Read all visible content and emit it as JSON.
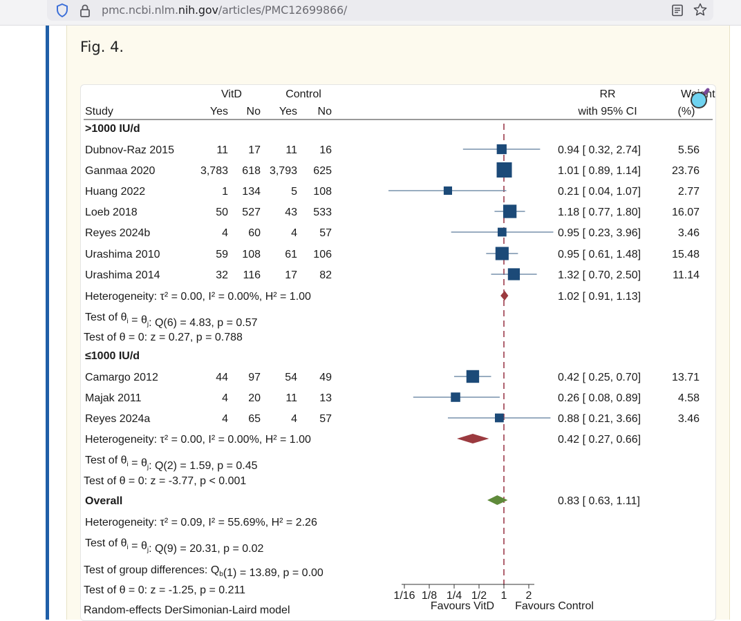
{
  "browser": {
    "url_prefix": "pmc.ncbi.nlm.",
    "url_domain": "nih.gov",
    "url_path": "/articles/PMC12699866/"
  },
  "figure": {
    "label": "Fig. 4."
  },
  "chart_data": {
    "type": "forest",
    "scale": "log2",
    "null_value": 1,
    "x_ticks": [
      0.0625,
      0.125,
      0.25,
      0.5,
      1,
      2
    ],
    "x_tick_labels": [
      "1/16",
      "1/8",
      "1/4",
      "1/2",
      "1",
      "2"
    ],
    "favours_left": "Favours VitD",
    "favours_right": "Favours Control",
    "headers": {
      "study": "Study",
      "vitd": "VitD",
      "control": "Control",
      "yes": "Yes",
      "no": "No",
      "rr": "RR",
      "ci": "with 95% CI",
      "weight": "Weight",
      "weight_unit": "(%)"
    },
    "groups": [
      {
        "name": ">1000 IU/d",
        "studies": [
          {
            "study": "Dubnov-Raz 2015",
            "vitd_yes": "11",
            "vitd_no": "17",
            "ctrl_yes": "11",
            "ctrl_no": "16",
            "rr": 0.94,
            "lo": 0.32,
            "hi": 2.74,
            "weight": "5.56",
            "rr_text": "0.94 [  0.32,  2.74]"
          },
          {
            "study": "Ganmaa 2020",
            "vitd_yes": "3,783",
            "vitd_no": "618",
            "ctrl_yes": "3,793",
            "ctrl_no": "625",
            "rr": 1.01,
            "lo": 0.89,
            "hi": 1.14,
            "weight": "23.76",
            "rr_text": "1.01 [  0.89,  1.14]"
          },
          {
            "study": "Huang 2022",
            "vitd_yes": "1",
            "vitd_no": "134",
            "ctrl_yes": "5",
            "ctrl_no": "108",
            "rr": 0.21,
            "lo": 0.04,
            "hi": 1.07,
            "weight": "2.77",
            "rr_text": "0.21 [  0.04,  1.07]"
          },
          {
            "study": "Loeb 2018",
            "vitd_yes": "50",
            "vitd_no": "527",
            "ctrl_yes": "43",
            "ctrl_no": "533",
            "rr": 1.18,
            "lo": 0.77,
            "hi": 1.8,
            "weight": "16.07",
            "rr_text": "1.18 [  0.77,  1.80]"
          },
          {
            "study": "Reyes 2024b",
            "vitd_yes": "4",
            "vitd_no": "60",
            "ctrl_yes": "4",
            "ctrl_no": "57",
            "rr": 0.95,
            "lo": 0.23,
            "hi": 3.96,
            "weight": "3.46",
            "rr_text": "0.95 [  0.23,  3.96]"
          },
          {
            "study": "Urashima 2010",
            "vitd_yes": "59",
            "vitd_no": "108",
            "ctrl_yes": "61",
            "ctrl_no": "106",
            "rr": 0.95,
            "lo": 0.61,
            "hi": 1.48,
            "weight": "15.48",
            "rr_text": "0.95 [  0.61,  1.48]"
          },
          {
            "study": "Urashima 2014",
            "vitd_yes": "32",
            "vitd_no": "116",
            "ctrl_yes": "17",
            "ctrl_no": "82",
            "rr": 1.32,
            "lo": 0.7,
            "hi": 2.5,
            "weight": "11.14",
            "rr_text": "1.32 [  0.70,  2.50]"
          }
        ],
        "pooled": {
          "rr": 1.02,
          "lo": 0.91,
          "hi": 1.13,
          "rr_text": "1.02 [  0.91,  1.13]"
        },
        "heterogeneity": "Heterogeneity: τ² = 0.00, I² = 0.00%, H² = 1.00",
        "test_q": "Test of θᵢ = θⱼ: Q(6) = 4.83, p = 0.57",
        "test_z": "Test of θ = 0: z = 0.27, p = 0.788"
      },
      {
        "name": "≤1000 IU/d",
        "studies": [
          {
            "study": "Camargo 2012",
            "vitd_yes": "44",
            "vitd_no": "97",
            "ctrl_yes": "54",
            "ctrl_no": "49",
            "rr": 0.42,
            "lo": 0.25,
            "hi": 0.7,
            "weight": "13.71",
            "rr_text": "0.42 [  0.25,  0.70]"
          },
          {
            "study": "Majak 2011",
            "vitd_yes": "4",
            "vitd_no": "20",
            "ctrl_yes": "11",
            "ctrl_no": "13",
            "rr": 0.26,
            "lo": 0.08,
            "hi": 0.89,
            "weight": "4.58",
            "rr_text": "0.26 [  0.08,  0.89]"
          },
          {
            "study": "Reyes 2024a",
            "vitd_yes": "4",
            "vitd_no": "65",
            "ctrl_yes": "4",
            "ctrl_no": "57",
            "rr": 0.88,
            "lo": 0.21,
            "hi": 3.66,
            "weight": "3.46",
            "rr_text": "0.88 [  0.21,  3.66]"
          }
        ],
        "pooled": {
          "rr": 0.42,
          "lo": 0.27,
          "hi": 0.66,
          "rr_text": "0.42 [  0.27,  0.66]"
        },
        "heterogeneity": "Heterogeneity: τ² = 0.00, I² = 0.00%, H² = 1.00",
        "test_q": "Test of θᵢ = θⱼ: Q(2) = 1.59, p = 0.45",
        "test_z": "Test of θ = 0: z = -3.77, p < 0.001"
      }
    ],
    "overall": {
      "label": "Overall",
      "rr": 0.83,
      "lo": 0.63,
      "hi": 1.11,
      "rr_text": "0.83 [  0.63,  1.11]",
      "heterogeneity": "Heterogeneity: τ² = 0.09, I² = 55.69%, H² = 2.26",
      "test_q": "Test of θᵢ = θⱼ: Q(9) = 20.31, p = 0.02",
      "test_group": "Test of group differences: Qb(1) = 13.89, p = 0.00",
      "test_z": "Test of θ = 0: z = -1.25, p = 0.211",
      "model": "Random-effects DerSimonian-Laird model"
    },
    "colors": {
      "square": "#1c4a78",
      "ci_line": "#5a7a9a",
      "diamond_subgroup": "#9b3a3f",
      "diamond_overall": "#5f8a3a",
      "null_line": "#9b3a4a"
    }
  }
}
